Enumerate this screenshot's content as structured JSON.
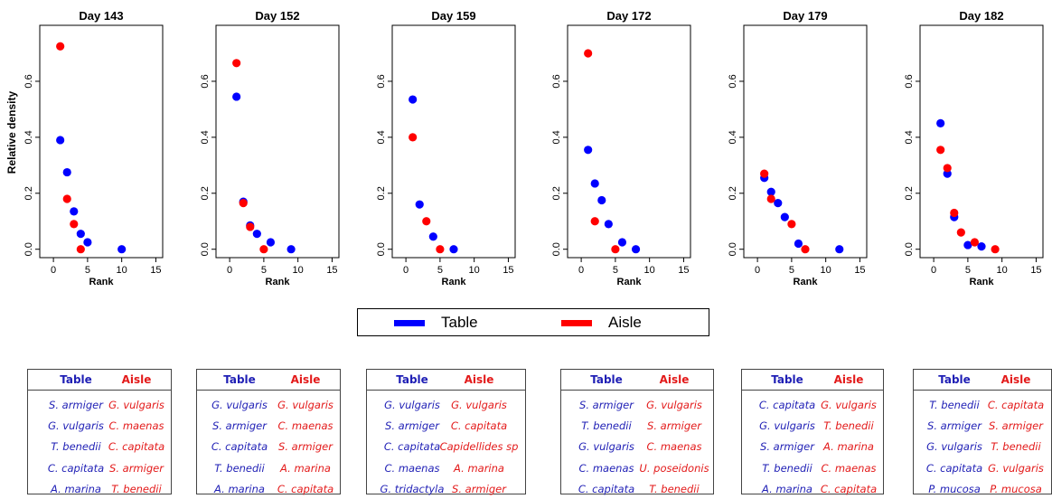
{
  "chart_data": [
    {
      "type": "scatter",
      "title": "Day 143",
      "xlabel": "Rank",
      "ylabel": "Relative density",
      "xlim": [
        -2,
        16
      ],
      "ylim": [
        -0.03,
        0.8
      ],
      "xticks": [
        0,
        5,
        10,
        15
      ],
      "yticks": [
        0.0,
        0.2,
        0.4,
        0.6
      ],
      "series": [
        {
          "name": "Table",
          "color": "#0000ff",
          "x": [
            1,
            2,
            3,
            4,
            5,
            10
          ],
          "y": [
            0.39,
            0.275,
            0.135,
            0.055,
            0.025,
            0.0
          ]
        },
        {
          "name": "Aisle",
          "color": "#ff0000",
          "x": [
            1,
            2,
            3,
            4
          ],
          "y": [
            0.725,
            0.18,
            0.09,
            0.0
          ]
        }
      ]
    },
    {
      "type": "scatter",
      "title": "Day 152",
      "xlabel": "Rank",
      "ylabel": "",
      "xlim": [
        -2,
        16
      ],
      "ylim": [
        -0.03,
        0.8
      ],
      "xticks": [
        0,
        5,
        10,
        15
      ],
      "yticks": [
        0.0,
        0.2,
        0.4,
        0.6
      ],
      "series": [
        {
          "name": "Table",
          "color": "#0000ff",
          "x": [
            1,
            2,
            3,
            4,
            6,
            9
          ],
          "y": [
            0.545,
            0.17,
            0.085,
            0.055,
            0.025,
            0.0
          ]
        },
        {
          "name": "Aisle",
          "color": "#ff0000",
          "x": [
            1,
            2,
            3,
            5
          ],
          "y": [
            0.665,
            0.165,
            0.08,
            0.0
          ]
        }
      ]
    },
    {
      "type": "scatter",
      "title": "Day 159",
      "xlabel": "Rank",
      "ylabel": "",
      "xlim": [
        -2,
        16
      ],
      "ylim": [
        -0.03,
        0.8
      ],
      "xticks": [
        0,
        5,
        10,
        15
      ],
      "yticks": [
        0.0,
        0.2,
        0.4,
        0.6
      ],
      "series": [
        {
          "name": "Table",
          "color": "#0000ff",
          "x": [
            1,
            2,
            4,
            7
          ],
          "y": [
            0.535,
            0.16,
            0.045,
            0.0
          ]
        },
        {
          "name": "Aisle",
          "color": "#ff0000",
          "x": [
            1,
            3,
            5
          ],
          "y": [
            0.4,
            0.1,
            0.0
          ]
        }
      ]
    },
    {
      "type": "scatter",
      "title": "Day 172",
      "xlabel": "Rank",
      "ylabel": "",
      "xlim": [
        -2,
        16
      ],
      "ylim": [
        -0.03,
        0.8
      ],
      "xticks": [
        0,
        5,
        10,
        15
      ],
      "yticks": [
        0.0,
        0.2,
        0.4,
        0.6
      ],
      "series": [
        {
          "name": "Table",
          "color": "#0000ff",
          "x": [
            1,
            2,
            3,
            4,
            6,
            8
          ],
          "y": [
            0.355,
            0.235,
            0.175,
            0.09,
            0.025,
            0.0
          ]
        },
        {
          "name": "Aisle",
          "color": "#ff0000",
          "x": [
            1,
            2,
            5
          ],
          "y": [
            0.7,
            0.1,
            0.0
          ]
        }
      ]
    },
    {
      "type": "scatter",
      "title": "Day 179",
      "xlabel": "Rank",
      "ylabel": "",
      "xlim": [
        -2,
        16
      ],
      "ylim": [
        -0.03,
        0.8
      ],
      "xticks": [
        0,
        5,
        10,
        15
      ],
      "yticks": [
        0.0,
        0.2,
        0.4,
        0.6
      ],
      "series": [
        {
          "name": "Table",
          "color": "#0000ff",
          "x": [
            1,
            2,
            3,
            4,
            6,
            12
          ],
          "y": [
            0.255,
            0.205,
            0.165,
            0.115,
            0.02,
            0.0
          ]
        },
        {
          "name": "Aisle",
          "color": "#ff0000",
          "x": [
            1,
            2,
            5,
            7
          ],
          "y": [
            0.27,
            0.18,
            0.09,
            0.0
          ]
        }
      ]
    },
    {
      "type": "scatter",
      "title": "Day 182",
      "xlabel": "Rank",
      "ylabel": "",
      "xlim": [
        -2,
        16
      ],
      "ylim": [
        -0.03,
        0.8
      ],
      "xticks": [
        0,
        5,
        10,
        15
      ],
      "yticks": [
        0.0,
        0.2,
        0.4,
        0.6
      ],
      "series": [
        {
          "name": "Table",
          "color": "#0000ff",
          "x": [
            1,
            2,
            3,
            5,
            7
          ],
          "y": [
            0.45,
            0.27,
            0.115,
            0.015,
            0.01
          ]
        },
        {
          "name": "Aisle",
          "color": "#ff0000",
          "x": [
            1,
            2,
            3,
            4,
            6,
            9
          ],
          "y": [
            0.355,
            0.29,
            0.13,
            0.06,
            0.025,
            0.0
          ]
        }
      ]
    }
  ],
  "legend": {
    "table_label": "Table",
    "aisle_label": "Aisle",
    "table_color": "#0000ff",
    "aisle_color": "#ff0000"
  },
  "tables": [
    {
      "header_table": "Table",
      "header_aisle": "Aisle",
      "table": [
        "S. armiger",
        "G. vulgaris",
        "T. benedii",
        "C. capitata",
        "A. marina"
      ],
      "aisle": [
        "G. vulgaris",
        "C. maenas",
        "C. capitata",
        "S. armiger",
        "T. benedii"
      ]
    },
    {
      "header_table": "Table",
      "header_aisle": "Aisle",
      "table": [
        "G. vulgaris",
        "S. armiger",
        "C. capitata",
        "T. benedii",
        "A. marina"
      ],
      "aisle": [
        "G. vulgaris",
        "C. maenas",
        "S. armiger",
        "A. marina",
        "C. capitata"
      ]
    },
    {
      "header_table": "Table",
      "header_aisle": "Aisle",
      "table": [
        "G. vulgaris",
        "S. armiger",
        "C. capitata",
        "C. maenas",
        "G. tridactyla"
      ],
      "aisle": [
        "G. vulgaris",
        "C. capitata",
        "Capidellides sp",
        "A. marina",
        "S. armiger"
      ]
    },
    {
      "header_table": "Table",
      "header_aisle": "Aisle",
      "table": [
        "S. armiger",
        "T. benedii",
        "G. vulgaris",
        "C. maenas",
        "C. capitata"
      ],
      "aisle": [
        "G. vulgaris",
        "S. armiger",
        "C. maenas",
        "U. poseidonis",
        "T. benedii"
      ]
    },
    {
      "header_table": "Table",
      "header_aisle": "Aisle",
      "table": [
        "C. capitata",
        "G. vulgaris",
        "S. armiger",
        "T. benedii",
        "A. marina"
      ],
      "aisle": [
        "G. vulgaris",
        "T. benedii",
        "A. marina",
        "C. maenas",
        "C. capitata"
      ]
    },
    {
      "header_table": "Table",
      "header_aisle": "Aisle",
      "table": [
        "T. benedii",
        "S. armiger",
        "G. vulgaris",
        "C. capitata",
        "P. mucosa"
      ],
      "aisle": [
        "C. capitata",
        "S. armiger",
        "T. benedii",
        "G. vulgaris",
        "P. mucosa"
      ]
    }
  ]
}
